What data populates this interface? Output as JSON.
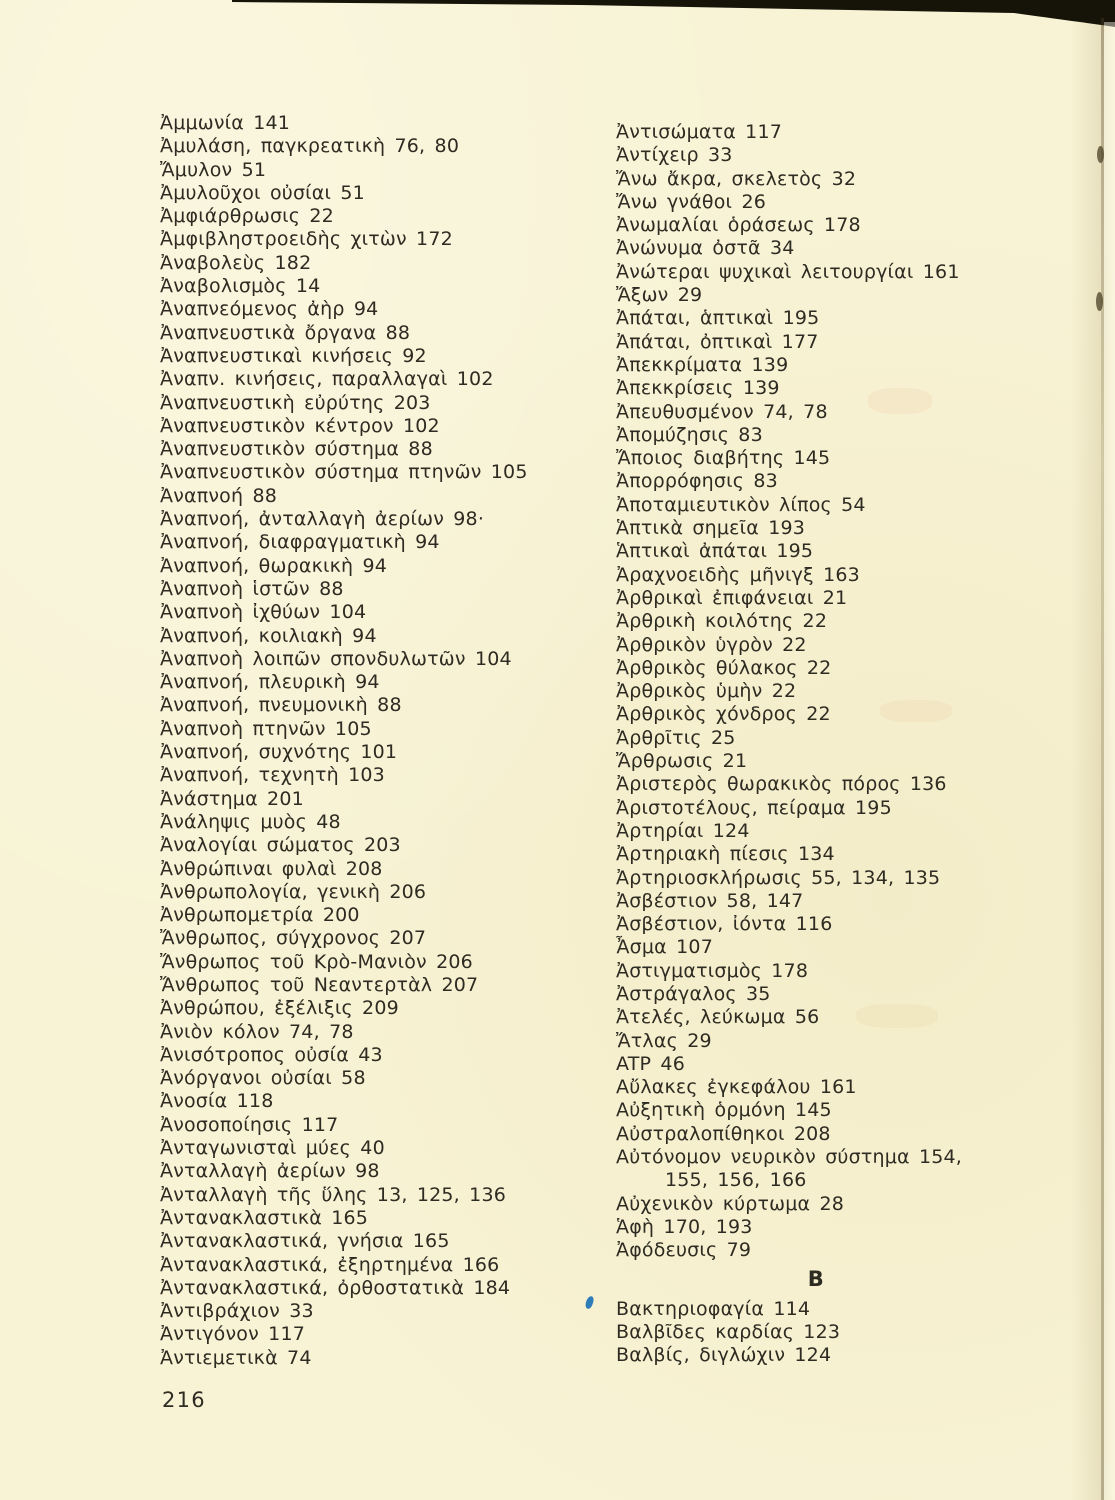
{
  "page": {
    "number": "216",
    "section_b_heading": "Β",
    "colors": {
      "paper": "#f8f3d5",
      "ink": "#2e2b22",
      "scan_edge": "#161309",
      "blue_ink": "#2e7cb8"
    },
    "left_column": [
      {
        "text": "Ἀμμωνία 141"
      },
      {
        "text": "Ἀμυλάση, παγκρεατικὴ 76, 80"
      },
      {
        "text": "Ἄμυλον 51"
      },
      {
        "text": "Ἀμυλοῦχοι οὐσίαι 51"
      },
      {
        "text": "Ἀμφιάρθρωσις 22"
      },
      {
        "text": "Ἀμφιβληστροειδὴς χιτὼν 172"
      },
      {
        "text": "Ἀναβολεὺς 182"
      },
      {
        "text": "Ἀναβολισμὸς 14"
      },
      {
        "text": "Ἀναπνεόμενος ἀὴρ 94"
      },
      {
        "text": "Ἀναπνευστικὰ ὄργανα 88"
      },
      {
        "text": "Ἀναπνευστικαὶ κινήσεις 92"
      },
      {
        "text": "Ἀναπν. κινήσεις, παραλλαγαὶ 102"
      },
      {
        "text": "Ἀναπνευστικὴ εὐρύτης 203"
      },
      {
        "text": "Ἀναπνευστικὸν κέντρον 102"
      },
      {
        "text": "Ἀναπνευστικὸν σύστημα 88"
      },
      {
        "text": "Ἀναπνευστικὸν σύστημα πτηνῶν 105"
      },
      {
        "text": "Ἀναπνοή 88"
      },
      {
        "text": "Ἀναπνοή, ἀνταλλαγὴ ἀερίων 98·"
      },
      {
        "text": "Ἀναπνοή, διαφραγματικὴ 94"
      },
      {
        "text": "Ἀναπνοή, θωρακικὴ 94"
      },
      {
        "text": "Ἀναπνοὴ ἱστῶν 88"
      },
      {
        "text": "Ἀναπνοὴ ἰχθύων 104"
      },
      {
        "text": "Ἀναπνοή, κοιλιακὴ 94"
      },
      {
        "text": "Ἀναπνοὴ λοιπῶν σπονδυλωτῶν 104"
      },
      {
        "text": "Ἀναπνοή, πλευρικὴ 94"
      },
      {
        "text": "Ἀναπνοή, πνευμονικὴ 88"
      },
      {
        "text": "Ἀναπνοὴ πτηνῶν 105"
      },
      {
        "text": "Ἀναπνοή, συχνότης 101"
      },
      {
        "text": "Ἀναπνοή, τεχνητὴ 103"
      },
      {
        "text": "Ἀνάστημα 201"
      },
      {
        "text": "Ἀνάληψις μυὸς 48"
      },
      {
        "text": "Ἀναλογίαι σώματος 203"
      },
      {
        "text": "Ἀνθρώπιναι φυλαὶ 208"
      },
      {
        "text": "Ἀνθρωπολογία, γενικὴ 206"
      },
      {
        "text": "Ἀνθρωπομετρία 200"
      },
      {
        "text": "Ἄνθρωπος, σύγχρονος 207"
      },
      {
        "text": "Ἄνθρωπος τοῦ Κρὸ-Μανιὸν 206"
      },
      {
        "text": "Ἄνθρωπος τοῦ Νεαντερτὰλ 207"
      },
      {
        "text": "Ἀνθρώπου, ἐξέλιξις 209"
      },
      {
        "text": "Ἀνιὸν κόλον 74, 78"
      },
      {
        "text": "Ἀνισότροπος οὐσία 43"
      },
      {
        "text": "Ἀνόργανοι οὐσίαι 58"
      },
      {
        "text": "Ἀνοσία 118"
      },
      {
        "text": "Ἀνοσοποίησις 117"
      },
      {
        "text": "Ἀνταγωνισταὶ μύες 40"
      },
      {
        "text": "Ἀνταλλαγὴ ἀερίων 98"
      },
      {
        "text": "Ἀνταλλαγὴ τῆς ὕλης 13, 125, 136"
      },
      {
        "text": "Ἀντανακλαστικὰ 165"
      },
      {
        "text": "Ἀντανακλαστικά, γνήσια 165"
      },
      {
        "text": "Ἀντανακλαστικά, ἐξηρτημένα 166"
      },
      {
        "text": "Ἀντανακλαστικά, ὀρθοστατικὰ 184"
      },
      {
        "text": "Ἀντιβράχιον 33"
      },
      {
        "text": "Ἀντιγόνον 117"
      },
      {
        "text": "Ἀντιεμετικὰ 74"
      }
    ],
    "right_column_a": [
      {
        "text": "Ἀντισώματα 117"
      },
      {
        "text": "Ἀντίχειρ 33"
      },
      {
        "text": "Ἄνω ἄκρα, σκελετὸς 32"
      },
      {
        "text": "Ἄνω γνάθοι 26"
      },
      {
        "text": "Ἀνωμαλίαι ὁράσεως 178"
      },
      {
        "text": "Ἀνώνυμα ὀστᾶ 34"
      },
      {
        "text": "Ἀνώτεραι ψυχικαὶ λειτουργίαι 161"
      },
      {
        "text": "Ἄξων 29"
      },
      {
        "text": "Ἀπάται, ἁπτικαὶ 195"
      },
      {
        "text": "Ἀπάται, ὀπτικαὶ 177"
      },
      {
        "text": "Ἀπεκκρίματα 139"
      },
      {
        "text": "Ἀπεκκρίσεις 139"
      },
      {
        "text": "Ἀπευθυσμένον 74, 78"
      },
      {
        "text": "Ἀπομύζησις 83"
      },
      {
        "text": "Ἄποιος διαβήτης 145"
      },
      {
        "text": "Ἀπορρόφησις 83"
      },
      {
        "text": "Ἀποταμιευτικὸν λίπος 54"
      },
      {
        "text": "Ἁπτικὰ σημεῖα 193"
      },
      {
        "text": "Ἁπτικαὶ ἀπάται 195"
      },
      {
        "text": "Ἀραχνοειδὴς μῆνιγξ 163"
      },
      {
        "text": "Ἀρθρικαὶ ἐπιφάνειαι 21"
      },
      {
        "text": "Ἀρθρικὴ κοιλότης 22"
      },
      {
        "text": "Ἀρθρικὸν ὑγρὸν 22"
      },
      {
        "text": "Ἀρθρικὸς θύλακος 22"
      },
      {
        "text": "Ἀρθρικὸς ὑμὴν 22"
      },
      {
        "text": "Ἀρθρικὸς χόνδρος 22"
      },
      {
        "text": "Ἀρθρῖτις 25"
      },
      {
        "text": "Ἄρθρωσις 21"
      },
      {
        "text": "Ἀριστερὸς θωρακικὸς πόρος 136"
      },
      {
        "text": "Ἀριστοτέλους, πείραμα 195"
      },
      {
        "text": "Ἀρτηρίαι 124"
      },
      {
        "text": "Ἀρτηριακὴ πίεσις 134"
      },
      {
        "text": "Ἀρτηριοσκλήρωσις 55, 134, 135"
      },
      {
        "text": "Ἀσβέστιον 58, 147"
      },
      {
        "text": "Ἀσβέστιον, ἰόντα 116"
      },
      {
        "text": "Ἆσμα 107"
      },
      {
        "text": "Ἀστιγματισμὸς 178"
      },
      {
        "text": "Ἀστράγαλος 35"
      },
      {
        "text": "Ἀτελές, λεύκωμα 56"
      },
      {
        "text": "Ἄτλας 29"
      },
      {
        "text": "ATP 46"
      },
      {
        "text": "Αὔλακες ἐγκεφάλου 161"
      },
      {
        "text": "Αὐξητικὴ ὁρμόνη 145"
      },
      {
        "text": "Αὐστραλοπίθηκοι 208"
      },
      {
        "text": "Αὐτόνομον νευρικὸν σύστημα 154,"
      },
      {
        "text": "155, 156, 166",
        "continuation": true
      },
      {
        "text": "Αὐχενικὸν κύρτωμα 28"
      },
      {
        "text": "Ἁφὴ 170, 193"
      },
      {
        "text": "Ἀφόδευσις 79"
      }
    ],
    "right_column_b": [
      {
        "text": "Βακτηριοφαγία 114"
      },
      {
        "text": "Βαλβῖδες καρδίας 123"
      },
      {
        "text": "Βαλβίς, διγλώχιν 124"
      }
    ]
  }
}
